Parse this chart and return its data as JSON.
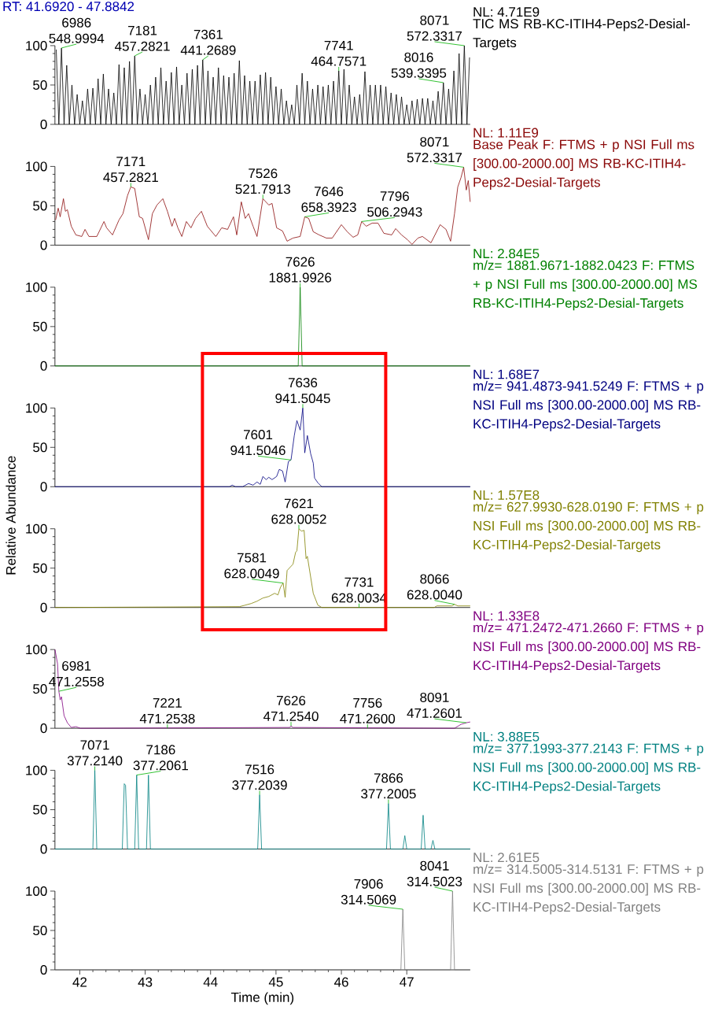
{
  "chart_data": [
    {
      "type": "line",
      "title": "NL: 4.71E9",
      "xlim": [
        41.62,
        47.97
      ],
      "ylim": [
        0,
        100
      ],
      "yticks": [
        0,
        50,
        100
      ],
      "tick_labels": "y",
      "series": [
        {
          "name": "TIC MS RB-KC-ITIH4-Peps2-Desial-Targets",
          "color": "#000000",
          "x": [
            41.64,
            41.68,
            41.72,
            41.76,
            41.8,
            41.84,
            41.88,
            41.92,
            41.96,
            42.0,
            42.04,
            42.08,
            42.12,
            42.16,
            42.2,
            42.24,
            42.28,
            42.32,
            42.36,
            42.4,
            42.44,
            42.48,
            42.52,
            42.56,
            42.6,
            42.64,
            42.68,
            42.72,
            42.76,
            42.8,
            42.84,
            42.88,
            42.92,
            42.96,
            43.0,
            43.04,
            43.08,
            43.12,
            43.16,
            43.2,
            43.24,
            43.28,
            43.32,
            43.36,
            43.4,
            43.44,
            43.48,
            43.52,
            43.56,
            43.6,
            43.64,
            43.68,
            43.72,
            43.76,
            43.8,
            43.84,
            43.88,
            43.92,
            43.96,
            44.0,
            44.04,
            44.08,
            44.12,
            44.16,
            44.2,
            44.24,
            44.28,
            44.32,
            44.36,
            44.4,
            44.44,
            44.48,
            44.52,
            44.56,
            44.6,
            44.64,
            44.68,
            44.72,
            44.76,
            44.8,
            44.84,
            44.88,
            44.92,
            44.96,
            45.0,
            45.04,
            45.08,
            45.12,
            45.16,
            45.2,
            45.24,
            45.28,
            45.32,
            45.36,
            45.4,
            45.44,
            45.48,
            45.52,
            45.56,
            45.6,
            45.64,
            45.68,
            45.72,
            45.76,
            45.8,
            45.84,
            45.88,
            45.92,
            45.96,
            46.0,
            46.04,
            46.08,
            46.12,
            46.16,
            46.2,
            46.24,
            46.28,
            46.32,
            46.36,
            46.4,
            46.44,
            46.48,
            46.52,
            46.56,
            46.6,
            46.64,
            46.68,
            46.72,
            46.76,
            46.8,
            46.84,
            46.88,
            46.92,
            46.96,
            47.0,
            47.04,
            47.08,
            47.12,
            47.16,
            47.2,
            47.24,
            47.28,
            47.32,
            47.36,
            47.4,
            47.44,
            47.48,
            47.52,
            47.56,
            47.6,
            47.64,
            47.68,
            47.72,
            47.76,
            47.8,
            47.84,
            47.88,
            47.92,
            47.96
          ],
          "values": [
            95,
            0,
            97,
            0,
            75,
            0,
            50,
            0,
            38,
            0,
            30,
            0,
            45,
            0,
            46,
            0,
            58,
            0,
            64,
            0,
            45,
            0,
            40,
            0,
            76,
            0,
            72,
            0,
            80,
            0,
            87,
            0,
            45,
            0,
            38,
            0,
            50,
            0,
            60,
            0,
            72,
            0,
            55,
            0,
            66,
            0,
            73,
            0,
            50,
            0,
            65,
            0,
            70,
            0,
            75,
            0,
            82,
            0,
            68,
            0,
            60,
            0,
            72,
            0,
            62,
            0,
            60,
            0,
            65,
            0,
            81,
            0,
            62,
            0,
            55,
            0,
            55,
            0,
            63,
            0,
            66,
            0,
            60,
            0,
            48,
            0,
            45,
            0,
            30,
            0,
            25,
            0,
            50,
            0,
            65,
            0,
            55,
            0,
            45,
            0,
            50,
            0,
            48,
            0,
            50,
            0,
            55,
            0,
            68,
            0,
            70,
            0,
            50,
            0,
            35,
            0,
            38,
            0,
            67,
            0,
            50,
            0,
            50,
            0,
            50,
            0,
            48,
            0,
            40,
            0,
            38,
            0,
            35,
            0,
            25,
            0,
            30,
            0,
            32,
            0,
            33,
            0,
            33,
            0,
            30,
            0,
            42,
            0,
            53,
            0,
            45,
            0,
            68,
            0,
            90,
            0,
            100,
            0,
            85
          ]
        }
      ],
      "annotations": [
        "RT: 41.6920 - 47.8842",
        {
          "text": "6986 548.9994",
          "x": 41.72,
          "y": 97
        },
        {
          "text": "7181 457.2821",
          "x": 42.84,
          "y": 87
        },
        {
          "text": "7361 441.2689",
          "x": 43.88,
          "y": 82
        },
        {
          "text": "7741 464.7571",
          "x": 45.96,
          "y": 68
        },
        {
          "text": "8016 539.3395",
          "x": 47.56,
          "y": 53
        },
        {
          "text": "8071 572.3317",
          "x": 47.88,
          "y": 100
        }
      ]
    },
    {
      "type": "line",
      "title": "NL: 1.11E9",
      "xlim": [
        41.62,
        47.97
      ],
      "ylim": [
        0,
        100
      ],
      "yticks": [
        0,
        50,
        100
      ],
      "tick_labels": "y",
      "series": [
        {
          "name": "Base Peak F: FTMS + p NSI Full ms [300.00-2000.00] MS RB-KC-ITIH4-Peps2-Desial-Targets",
          "color": "#8b0a0a",
          "x": [
            41.63,
            41.67,
            41.7,
            41.75,
            41.78,
            41.81,
            41.87,
            41.94,
            42.03,
            42.08,
            42.14,
            42.26,
            42.37,
            42.41,
            42.5,
            42.6,
            42.66,
            42.73,
            42.78,
            42.84,
            42.91,
            42.96,
            43.05,
            43.11,
            43.18,
            43.27,
            43.34,
            43.41,
            43.45,
            43.5,
            43.56,
            43.63,
            43.7,
            43.77,
            43.86,
            43.95,
            44.08,
            44.17,
            44.26,
            44.35,
            44.4,
            44.47,
            44.53,
            44.58,
            44.65,
            44.71,
            44.8,
            44.89,
            44.94,
            45.01,
            45.1,
            45.17,
            45.26,
            45.37,
            45.44,
            45.5,
            45.57,
            45.66,
            45.77,
            45.86,
            46.0,
            46.09,
            46.18,
            46.25,
            46.31,
            46.38,
            46.47,
            46.56,
            46.65,
            46.77,
            46.83,
            46.92,
            47.01,
            47.08,
            47.17,
            47.24,
            47.37,
            47.51,
            47.6,
            47.67,
            47.73,
            47.78,
            47.83,
            47.87,
            47.91,
            47.94,
            47.97
          ],
          "values": [
            32,
            47,
            36,
            59,
            43,
            45,
            24,
            13,
            11,
            20,
            11,
            11,
            30,
            22,
            13,
            32,
            40,
            63,
            74,
            72,
            36,
            34,
            7,
            40,
            51,
            59,
            43,
            24,
            34,
            22,
            11,
            30,
            22,
            34,
            43,
            24,
            11,
            22,
            20,
            36,
            13,
            55,
            34,
            40,
            24,
            11,
            59,
            51,
            53,
            22,
            18,
            5,
            9,
            11,
            36,
            34,
            17,
            13,
            9,
            9,
            26,
            17,
            10,
            13,
            30,
            24,
            28,
            28,
            15,
            13,
            21,
            13,
            7,
            1,
            9,
            11,
            3,
            26,
            20,
            5,
            40,
            74,
            86,
            99,
            70,
            82,
            55
          ]
        }
      ],
      "annotations": [
        {
          "text": "7171 457.2821",
          "x": 42.78,
          "y": 74
        },
        {
          "text": "7526 521.7913",
          "x": 44.8,
          "y": 59
        },
        {
          "text": "7646 658.3923",
          "x": 45.44,
          "y": 36
        },
        {
          "text": "7796 506.2943",
          "x": 46.31,
          "y": 30
        },
        {
          "text": "8071 572.3317",
          "x": 47.87,
          "y": 99
        }
      ]
    },
    {
      "type": "line",
      "title": "NL: 2.84E5",
      "xlim": [
        41.62,
        47.97
      ],
      "ylim": [
        0,
        100
      ],
      "yticks": [
        0,
        50,
        100
      ],
      "tick_labels": "y",
      "series": [
        {
          "name": "m/z= 1881.9671-1882.0423 F: FTMS + p NSI Full ms [300.00-2000.00] MS RB-KC-ITIH4-Peps2-Desial-Targets",
          "color": "#008000",
          "x": [
            41.62,
            45.34,
            45.37,
            45.4,
            47.97
          ],
          "values": [
            0,
            0,
            100,
            0,
            0
          ]
        }
      ],
      "annotations": [
        {
          "text": "7626 1881.9926",
          "x": 45.37,
          "y": 100
        }
      ]
    },
    {
      "type": "line",
      "title": "NL: 1.68E7",
      "xlim": [
        41.62,
        47.97
      ],
      "ylim": [
        0,
        100
      ],
      "yticks": [
        0,
        50,
        100
      ],
      "tick_labels": "y",
      "series": [
        {
          "name": "m/z= 941.4873-941.5249 F: FTMS + p NSI Full ms [300.00-2000.00] MS RB-KC-ITIH4-Peps2-Desial-Targets",
          "color": "#000080",
          "x": [
            41.62,
            44.29,
            44.33,
            44.38,
            44.49,
            44.58,
            44.65,
            44.71,
            44.76,
            44.8,
            44.85,
            44.89,
            44.94,
            45.01,
            45.05,
            45.1,
            45.14,
            45.19,
            45.23,
            45.28,
            45.32,
            45.37,
            45.41,
            45.44,
            45.48,
            45.53,
            45.57,
            45.59,
            45.64,
            45.7,
            47.97
          ],
          "values": [
            0,
            0,
            2,
            0,
            0,
            4,
            2,
            6,
            3,
            13,
            9,
            12,
            9,
            13,
            22,
            20,
            6,
            32,
            34,
            65,
            84,
            72,
            100,
            43,
            65,
            42,
            30,
            11,
            5,
            0,
            0
          ]
        }
      ],
      "annotations": [
        {
          "text": "7636 941.5045",
          "x": 45.41,
          "y": 100
        },
        {
          "text": "7601 941.5046",
          "x": 45.23,
          "y": 34
        }
      ]
    },
    {
      "type": "line",
      "title": "NL: 1.57E8",
      "xlim": [
        41.62,
        47.97
      ],
      "ylim": [
        0,
        100
      ],
      "yticks": [
        0,
        50,
        100
      ],
      "tick_labels": "y",
      "ylabel": "Relative Abundance",
      "series": [
        {
          "name": "m/z= 627.9930-628.0190 F: FTMS + p NSI Full ms [300.00-2000.00] MS RB-KC-ITIH4-Peps2-Desial-Targets",
          "color": "#808000",
          "x": [
            41.62,
            44.44,
            44.53,
            44.62,
            44.71,
            44.8,
            44.89,
            44.98,
            45.03,
            45.07,
            45.11,
            45.14,
            45.17,
            45.26,
            45.3,
            45.32,
            45.35,
            45.39,
            45.43,
            45.46,
            45.48,
            45.57,
            45.64,
            45.7,
            47.42,
            47.46,
            47.69,
            47.73,
            47.78,
            47.97
          ],
          "values": [
            0,
            1,
            3,
            5,
            8,
            12,
            14,
            18,
            16,
            26,
            31,
            13,
            47,
            55,
            70,
            72,
            100,
            97,
            98,
            62,
            65,
            18,
            3,
            0,
            0,
            2,
            2,
            4,
            2,
            2
          ]
        }
      ],
      "annotations": [
        {
          "text": "7621 628.0052",
          "x": 45.35,
          "y": 100
        },
        {
          "text": "7581 628.0049",
          "x": 45.11,
          "y": 31
        },
        {
          "text": "7731 628.0034",
          "x": 46.27,
          "y": 0
        },
        {
          "text": "8066 628.0040",
          "x": 47.73,
          "y": 4
        }
      ]
    },
    {
      "type": "line",
      "title": "NL: 1.33E8",
      "xlim": [
        41.62,
        47.97
      ],
      "ylim": [
        0,
        100
      ],
      "yticks": [
        0,
        50,
        100
      ],
      "tick_labels": "y",
      "series": [
        {
          "name": "m/z= 471.2472-471.2660 F: FTMS + p NSI Full ms [300.00-2000.00] MS RB-KC-ITIH4-Peps2-Desial-Targets",
          "color": "#800080",
          "x": [
            41.62,
            41.66,
            41.68,
            41.7,
            41.72,
            41.76,
            41.81,
            41.87,
            41.94,
            42.01,
            45.21,
            45.23,
            45.26,
            47.73,
            47.83,
            47.91,
            47.97
          ],
          "values": [
            100,
            82,
            47,
            36,
            40,
            16,
            7,
            1,
            2,
            0,
            1,
            3,
            1,
            0,
            5,
            7,
            8
          ]
        }
      ],
      "annotations": [
        {
          "text": "6981 471.2558",
          "x": 41.68,
          "y": 47
        },
        {
          "text": "7221 471.2538",
          "x": 43.34,
          "y": 0
        },
        {
          "text": "7626 471.2540",
          "x": 45.23,
          "y": 3
        },
        {
          "text": "7756 471.2600",
          "x": 46.4,
          "y": 0
        },
        {
          "text": "8091 471.2601",
          "x": 47.91,
          "y": 7
        }
      ]
    },
    {
      "type": "line",
      "title": "NL: 3.88E5",
      "xlim": [
        41.62,
        47.97
      ],
      "ylim": [
        0,
        100
      ],
      "yticks": [
        0,
        50,
        100
      ],
      "tick_labels": "y",
      "series": [
        {
          "name": "m/z= 377.1993-377.2143 F: FTMS + p NSI Full ms [300.00-2000.00] MS RB-KC-ITIH4-Peps2-Desial-Targets",
          "color": "#008080",
          "x": [
            41.62,
            42.2,
            42.23,
            42.26,
            42.65,
            42.68,
            42.7,
            42.73,
            42.84,
            42.87,
            42.9,
            43.02,
            43.05,
            43.08,
            44.72,
            44.75,
            44.78,
            46.69,
            46.72,
            46.75,
            46.94,
            46.97,
            47.0,
            47.22,
            47.25,
            47.28,
            47.37,
            47.4,
            47.43,
            47.97
          ],
          "values": [
            0,
            0,
            100,
            0,
            0,
            83,
            81,
            0,
            0,
            94,
            0,
            0,
            94,
            0,
            0,
            69,
            0,
            0,
            58,
            0,
            0,
            17,
            0,
            0,
            43,
            0,
            0,
            11,
            0,
            0
          ]
        }
      ],
      "annotations": [
        {
          "text": "7071 377.2140",
          "x": 42.23,
          "y": 100
        },
        {
          "text": "7186 377.2061",
          "x": 42.87,
          "y": 94
        },
        {
          "text": "7516 377.2039",
          "x": 44.75,
          "y": 69
        },
        {
          "text": "7866 377.2005",
          "x": 46.72,
          "y": 58
        }
      ]
    },
    {
      "type": "line",
      "title": "NL: 2.61E5",
      "xlim": [
        41.62,
        47.97
      ],
      "ylim": [
        0,
        100
      ],
      "yticks": [
        0,
        50,
        100
      ],
      "xticks": [
        42,
        43,
        44,
        45,
        46,
        47
      ],
      "xlabel": "Time (min)",
      "series": [
        {
          "name": "m/z= 314.5005-314.5131 F: FTMS + p NSI Full ms [300.00-2000.00] MS RB-KC-ITIH4-Peps2-Desial-Targets",
          "color": "#808080",
          "x": [
            41.62,
            46.91,
            46.94,
            46.97,
            47.67,
            47.7,
            47.73,
            47.97
          ],
          "values": [
            0,
            0,
            77,
            0,
            0,
            100,
            0,
            0
          ]
        }
      ],
      "annotations": [
        {
          "text": "7906 314.5069",
          "x": 46.94,
          "y": 77
        },
        {
          "text": "8041 314.5023",
          "x": 47.7,
          "y": 100
        }
      ]
    }
  ]
}
